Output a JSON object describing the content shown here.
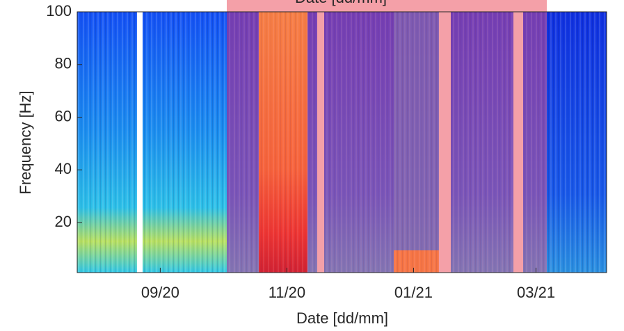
{
  "chart_data": {
    "type": "heatmap",
    "annotation": "Date [dd/mm]",
    "xlabel": "Date [dd/mm]",
    "ylabel": "Frequency [Hz]",
    "xlim": [
      "2020-07-23",
      "2021-04-04"
    ],
    "xticks": [
      {
        "value": "2020-09-01",
        "label": "09/20"
      },
      {
        "value": "2020-11-01",
        "label": "11/20"
      },
      {
        "value": "2021-01-01",
        "label": "01/21"
      },
      {
        "value": "2021-03-01",
        "label": "03/21"
      }
    ],
    "ylim": [
      1,
      100
    ],
    "yticks": [
      20,
      40,
      60,
      80,
      100
    ]
  }
}
